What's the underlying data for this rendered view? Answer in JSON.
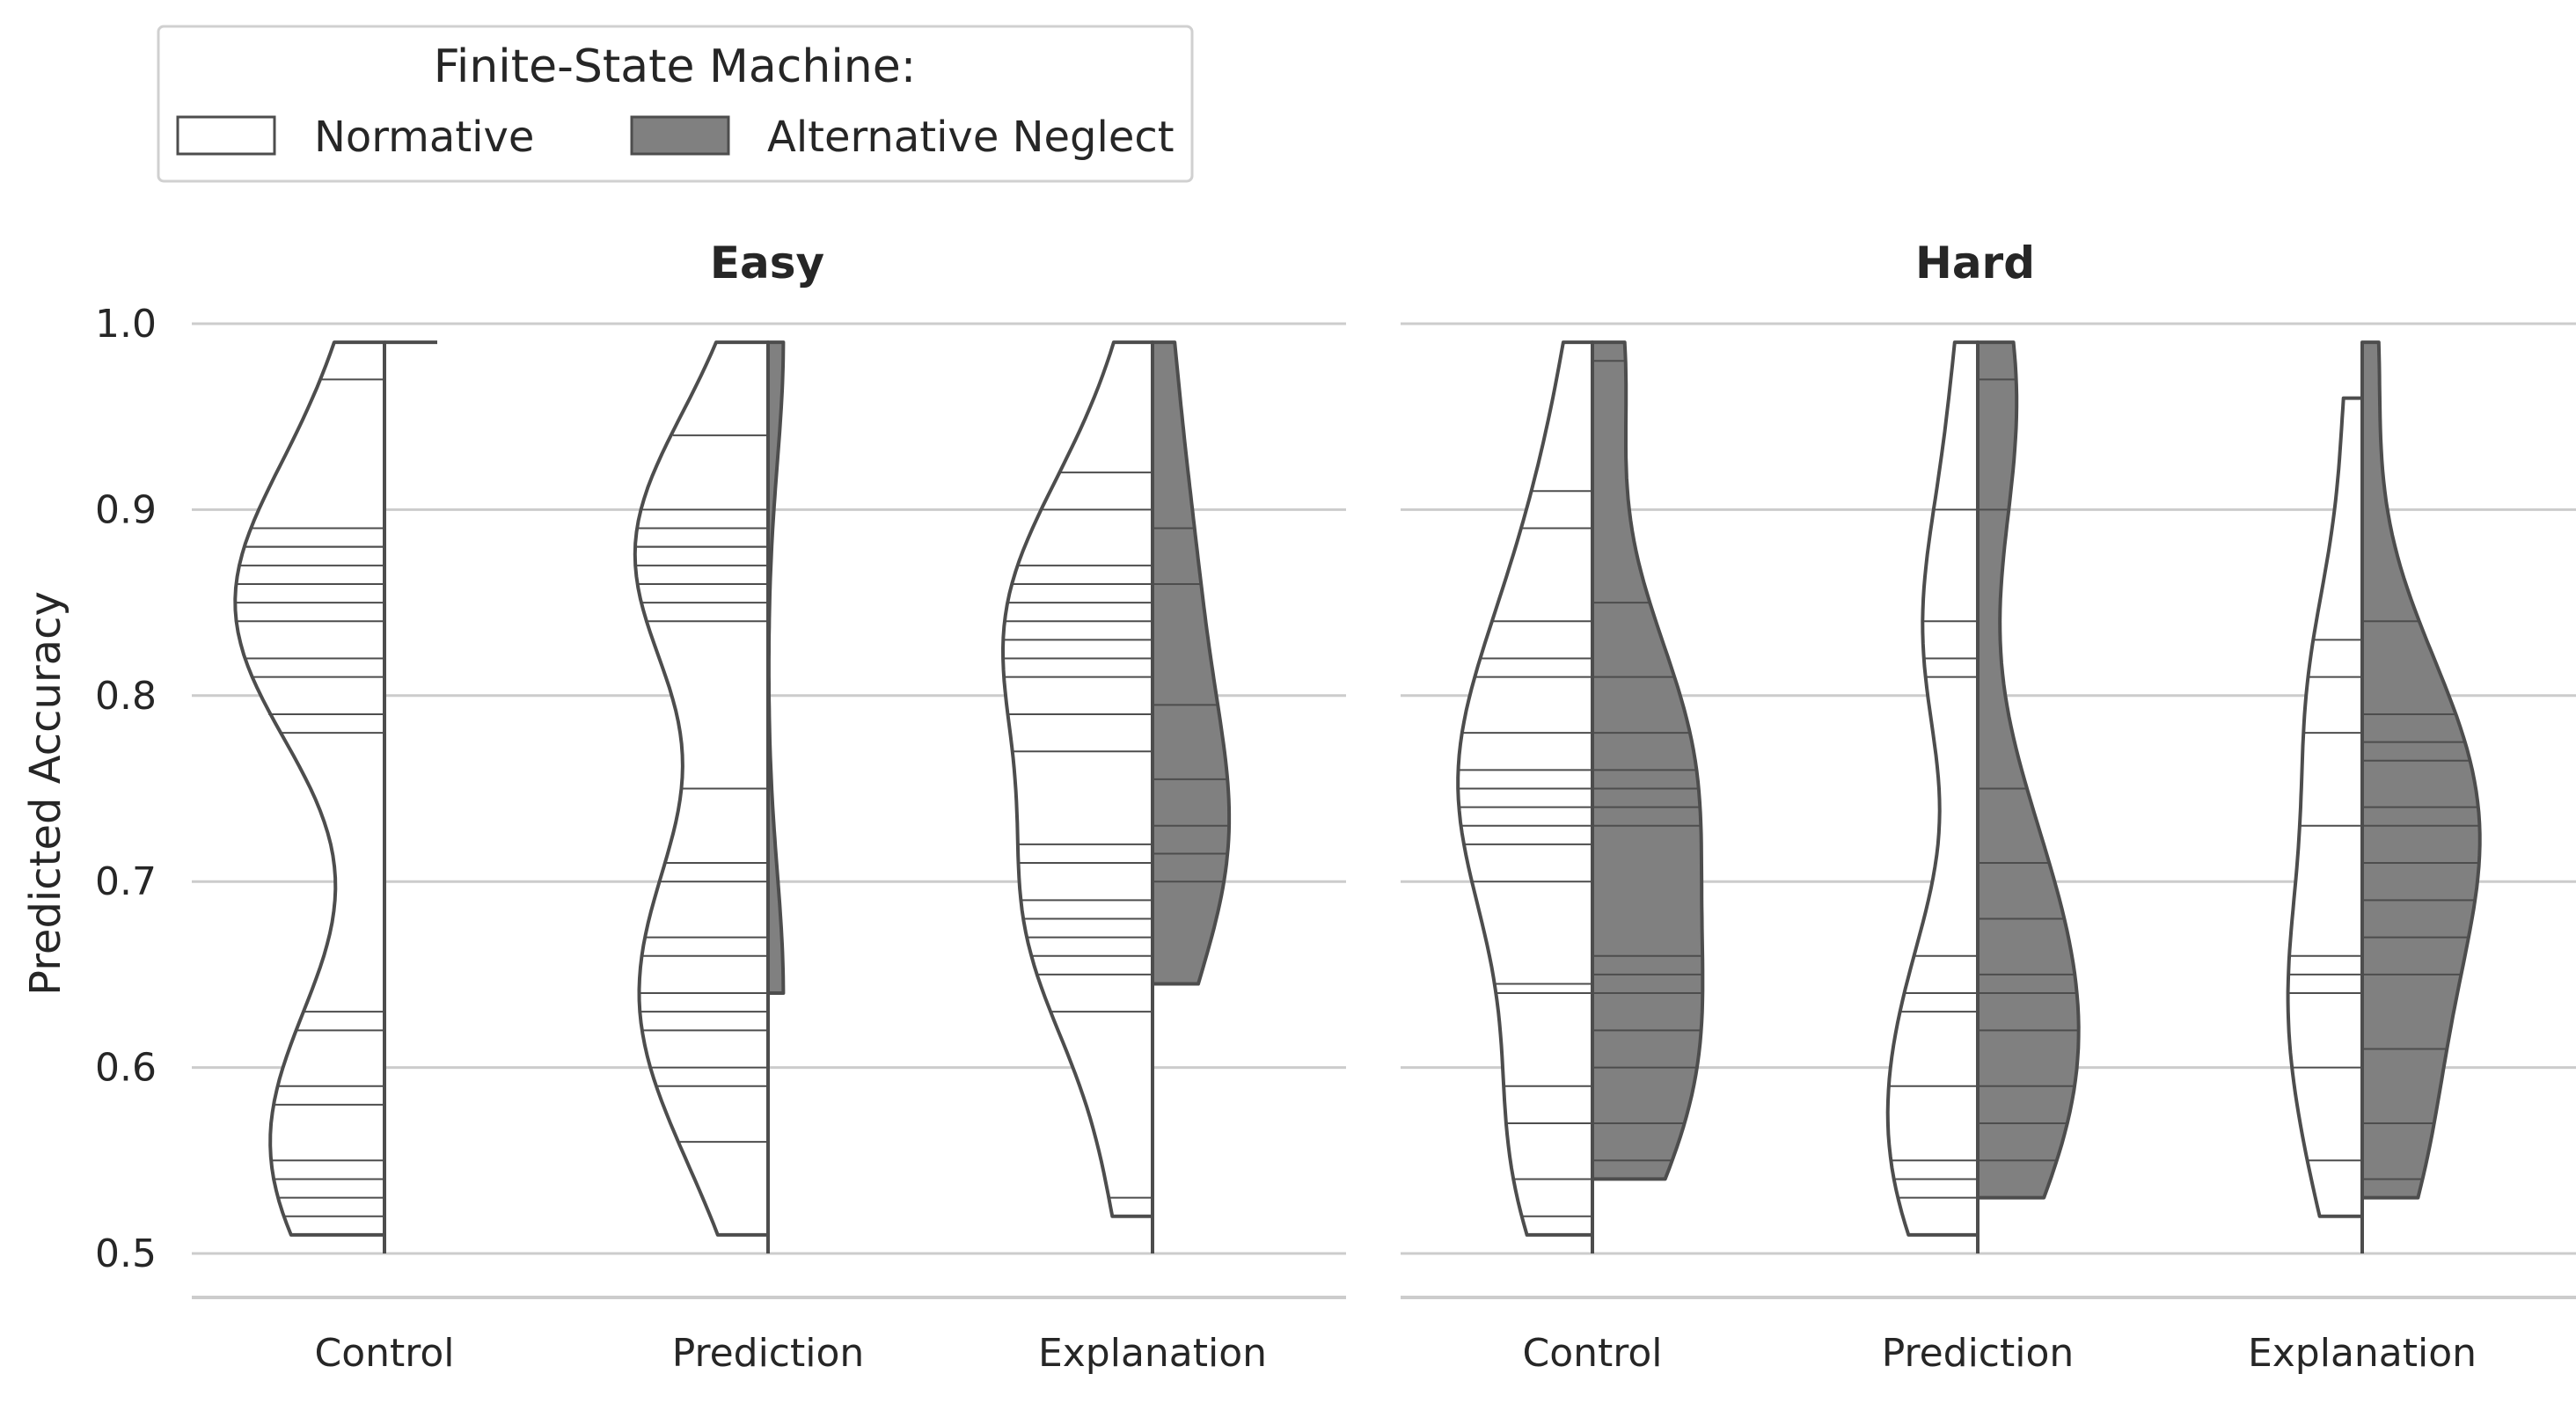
{
  "chart_data": {
    "type": "violin",
    "split": true,
    "inner": "stick",
    "ylabel": "Predicted Accuracy",
    "ylim": [
      0.5,
      1.0
    ],
    "yticks": [
      "0.5",
      "0.6",
      "0.7",
      "0.8",
      "0.9",
      "1.0"
    ],
    "ytick_values": [
      0.5,
      0.6,
      0.7,
      0.8,
      0.9,
      1.0
    ],
    "grid": true,
    "legend": {
      "title": "Finite-State Machine:",
      "placement": "top-left",
      "entries": [
        {
          "label": "Normative",
          "color": "#ffffff"
        },
        {
          "label": "Alternative Neglect",
          "color": "#808080"
        }
      ]
    },
    "categories": [
      "Control",
      "Prediction",
      "Explanation"
    ],
    "panels": [
      {
        "title": "Easy",
        "groups": [
          {
            "category": "Control",
            "normative": [
              0.51,
              0.52,
              0.53,
              0.54,
              0.55,
              0.58,
              0.59,
              0.62,
              0.63,
              0.78,
              0.79,
              0.81,
              0.82,
              0.84,
              0.85,
              0.86,
              0.87,
              0.88,
              0.88,
              0.89,
              0.97,
              0.99
            ],
            "alternative_neglect": [
              0.99
            ]
          },
          {
            "category": "Prediction",
            "normative": [
              0.51,
              0.56,
              0.59,
              0.6,
              0.62,
              0.63,
              0.64,
              0.66,
              0.67,
              0.7,
              0.71,
              0.75,
              0.84,
              0.85,
              0.86,
              0.87,
              0.88,
              0.88,
              0.89,
              0.9,
              0.94,
              0.99
            ],
            "alternative_neglect": [
              0.64,
              0.99
            ]
          },
          {
            "category": "Explanation",
            "normative": [
              0.52,
              0.53,
              0.63,
              0.65,
              0.66,
              0.67,
              0.68,
              0.69,
              0.71,
              0.72,
              0.77,
              0.79,
              0.81,
              0.82,
              0.83,
              0.84,
              0.85,
              0.86,
              0.87,
              0.9,
              0.92,
              0.99
            ],
            "alternative_neglect": [
              0.645,
              0.7,
              0.715,
              0.73,
              0.755,
              0.795,
              0.86,
              0.89,
              0.99
            ]
          }
        ]
      },
      {
        "title": "Hard",
        "groups": [
          {
            "category": "Control",
            "normative": [
              0.51,
              0.52,
              0.54,
              0.57,
              0.59,
              0.64,
              0.645,
              0.7,
              0.72,
              0.73,
              0.74,
              0.75,
              0.76,
              0.78,
              0.81,
              0.82,
              0.84,
              0.89,
              0.91,
              0.99
            ],
            "alternative_neglect": [
              0.54,
              0.55,
              0.57,
              0.6,
              0.62,
              0.64,
              0.65,
              0.66,
              0.73,
              0.74,
              0.75,
              0.76,
              0.78,
              0.81,
              0.85,
              0.98,
              0.99
            ]
          },
          {
            "category": "Prediction",
            "normative": [
              0.51,
              0.53,
              0.54,
              0.55,
              0.59,
              0.63,
              0.64,
              0.66,
              0.81,
              0.82,
              0.84,
              0.9,
              0.99
            ],
            "alternative_neglect": [
              0.53,
              0.55,
              0.57,
              0.59,
              0.62,
              0.64,
              0.65,
              0.68,
              0.71,
              0.75,
              0.9,
              0.97,
              0.99
            ]
          },
          {
            "category": "Explanation",
            "normative": [
              0.52,
              0.55,
              0.6,
              0.64,
              0.65,
              0.66,
              0.73,
              0.78,
              0.81,
              0.83,
              0.96
            ],
            "alternative_neglect": [
              0.53,
              0.54,
              0.57,
              0.61,
              0.65,
              0.67,
              0.69,
              0.71,
              0.73,
              0.74,
              0.765,
              0.775,
              0.79,
              0.84,
              0.99
            ]
          }
        ]
      }
    ]
  }
}
